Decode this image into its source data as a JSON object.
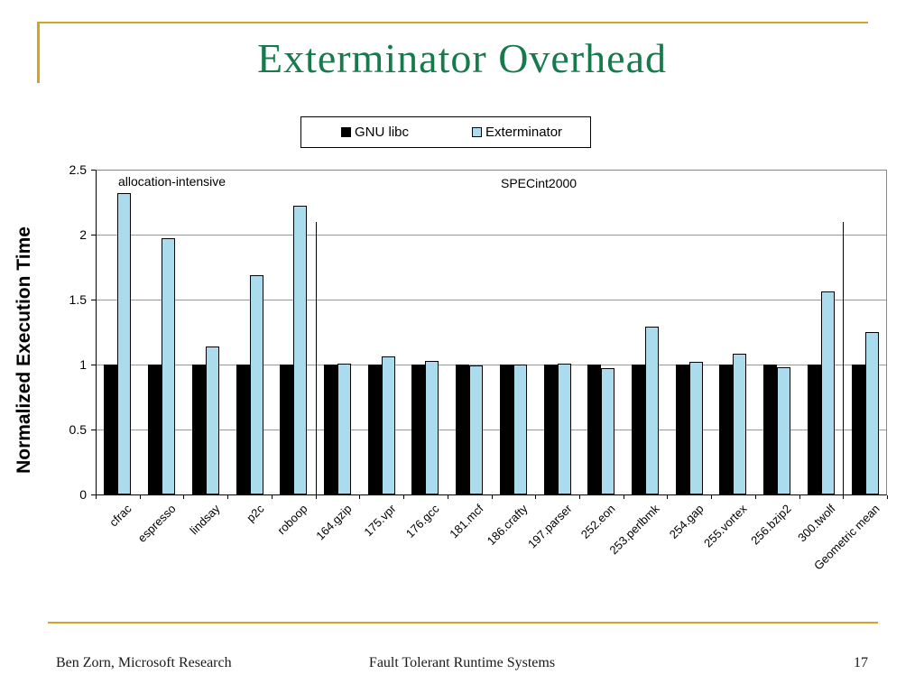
{
  "slide": {
    "title": "Exterminator Overhead",
    "footer": {
      "left": "Ben Zorn, Microsoft Research",
      "center": "Fault Tolerant Runtime Systems",
      "page_number": "17"
    }
  },
  "colors": {
    "title_green": "#177a4c",
    "accent_gold": "#d6a322",
    "gnu_libc_black": "#000000",
    "exterminator_blue": "#aadcee"
  },
  "chart_data": {
    "type": "bar",
    "ylabel": "Normalized Execution Time",
    "xlabel": "",
    "ylim": [
      0,
      2.5
    ],
    "yticks": [
      0,
      0.5,
      1,
      1.5,
      2,
      2.5
    ],
    "grid": true,
    "legend_position": "top",
    "categories": [
      "cfrac",
      "espresso",
      "lindsay",
      "p2c",
      "roboop",
      "164.gzip",
      "175.vpr",
      "176.gcc",
      "181.mcf",
      "186.crafty",
      "197.parser",
      "252.eon",
      "253.perlbmk",
      "254.gap",
      "255.vortex",
      "256.bzip2",
      "300.twolf",
      "Geometric mean"
    ],
    "series": [
      {
        "name": "GNU libc",
        "color": "#000000",
        "values": [
          1.0,
          1.0,
          1.0,
          1.0,
          1.0,
          1.0,
          1.0,
          1.0,
          1.0,
          1.0,
          1.0,
          1.0,
          1.0,
          1.0,
          1.0,
          1.0,
          1.0,
          1.0
        ]
      },
      {
        "name": "Exterminator",
        "color": "#aadcee",
        "values": [
          2.32,
          1.97,
          1.14,
          1.69,
          2.22,
          1.01,
          1.06,
          1.03,
          0.99,
          1.0,
          1.01,
          0.97,
          1.29,
          1.02,
          1.08,
          0.98,
          1.56,
          1.25
        ]
      }
    ],
    "annotations": [
      {
        "text": "allocation-intensive",
        "x": 131,
        "y": 193
      },
      {
        "text": "SPECint2000",
        "x": 555,
        "y": 195
      }
    ],
    "separators": {
      "after_category_index": [
        4,
        16
      ],
      "top_value": 2.1
    }
  }
}
